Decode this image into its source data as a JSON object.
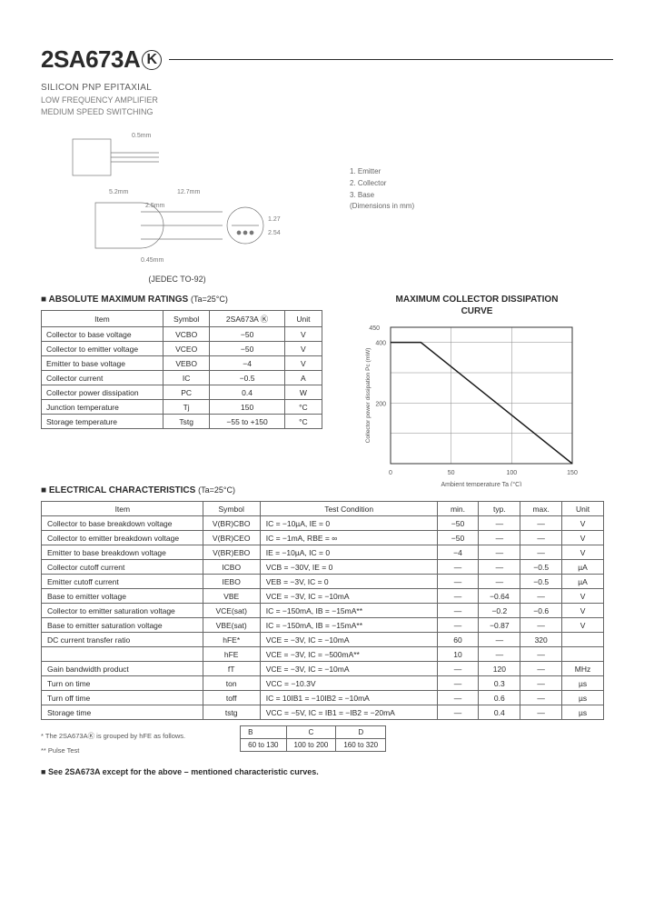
{
  "header": {
    "part_number": "2SA673A",
    "suffix_letter": "K",
    "subtitle1": "SILICON PNP EPITAXIAL",
    "subtitle2_line1": "LOW FREQUENCY AMPLIFIER",
    "subtitle2_line2": "MEDIUM SPEED SWITCHING"
  },
  "pin_legend": {
    "p1": "1. Emitter",
    "p2": "2. Collector",
    "p3": "3. Base",
    "note": "(Dimensions in mm)"
  },
  "package_label": "(JEDEC TO-92)",
  "diagram_dims": {
    "values": [
      "0.5mm",
      "5.2mm",
      "12.7mm",
      "2.5mm",
      "0.45mm",
      "1.27",
      "2.54"
    ]
  },
  "ratings_section": {
    "title": "ABSOLUTE MAXIMUM RATINGS",
    "condition": "(Ta=25°C)",
    "headers": [
      "Item",
      "Symbol",
      "2SA673A Ⓚ",
      "Unit"
    ],
    "rows": [
      [
        "Collector to base voltage",
        "VCBO",
        "−50",
        "V"
      ],
      [
        "Collector to emitter voltage",
        "VCEO",
        "−50",
        "V"
      ],
      [
        "Emitter to base voltage",
        "VEBO",
        "−4",
        "V"
      ],
      [
        "Collector current",
        "IC",
        "−0.5",
        "A"
      ],
      [
        "Collector power dissipation",
        "PC",
        "0.4",
        "W"
      ],
      [
        "Junction temperature",
        "Tj",
        "150",
        "°C"
      ],
      [
        "Storage temperature",
        "Tstg",
        "−55 to +150",
        "°C"
      ]
    ]
  },
  "chart": {
    "title_l1": "MAXIMUM COLLECTOR DISSIPATION",
    "title_l2": "CURVE",
    "ylabel": "Collector power dissipation Pc (mW)",
    "xlabel": "Ambient temperature Ta (°C)",
    "xlim": [
      0,
      150
    ],
    "ylim": [
      0,
      450
    ],
    "xticks": [
      0,
      50,
      100,
      150
    ],
    "yticks": [
      0,
      200,
      400
    ],
    "xtick_labels": [
      "0",
      "50",
      "100",
      "150"
    ],
    "ytick_labels": [
      "",
      "200",
      "400"
    ],
    "line_points": [
      [
        0,
        400
      ],
      [
        25,
        400
      ],
      [
        150,
        0
      ]
    ],
    "grid_color": "#888888",
    "line_color": "#1a1a1a",
    "background_color": "#ffffff"
  },
  "elec_section": {
    "title": "ELECTRICAL CHARACTERISTICS",
    "condition": "(Ta=25°C)",
    "headers": [
      "Item",
      "Symbol",
      "Test Condition",
      "min.",
      "typ.",
      "max.",
      "Unit"
    ],
    "rows": [
      [
        "Collector to base breakdown voltage",
        "V(BR)CBO",
        "IC = −10µA, IE = 0",
        "−50",
        "—",
        "—",
        "V"
      ],
      [
        "Collector to emitter breakdown voltage",
        "V(BR)CEO",
        "IC = −1mA, RBE = ∞",
        "−50",
        "—",
        "—",
        "V"
      ],
      [
        "Emitter to base breakdown voltage",
        "V(BR)EBO",
        "IE = −10µA, IC = 0",
        "−4",
        "—",
        "—",
        "V"
      ],
      [
        "Collector cutoff current",
        "ICBO",
        "VCB = −30V, IE = 0",
        "—",
        "—",
        "−0.5",
        "µA"
      ],
      [
        "Emitter cutoff current",
        "IEBO",
        "VEB = −3V, IC = 0",
        "—",
        "—",
        "−0.5",
        "µA"
      ],
      [
        "Base to emitter voltage",
        "VBE",
        "VCE = −3V, IC = −10mA",
        "—",
        "−0.64",
        "—",
        "V"
      ],
      [
        "Collector to emitter saturation voltage",
        "VCE(sat)",
        "IC = −150mA, IB = −15mA**",
        "—",
        "−0.2",
        "−0.6",
        "V"
      ],
      [
        "Base to emitter saturation voltage",
        "VBE(sat)",
        "IC = −150mA, IB = −15mA**",
        "—",
        "−0.87",
        "—",
        "V"
      ],
      [
        "DC current transfer ratio",
        "hFE*",
        "VCE = −3V, IC = −10mA",
        "60",
        "—",
        "320",
        ""
      ],
      [
        "",
        "hFE",
        "VCE = −3V, IC = −500mA**",
        "10",
        "—",
        "—",
        ""
      ],
      [
        "Gain bandwidth product",
        "fT",
        "VCE = −3V, IC = −10mA",
        "—",
        "120",
        "—",
        "MHz"
      ],
      [
        "Turn on time",
        "ton",
        "VCC = −10.3V",
        "—",
        "0.3",
        "—",
        "µs"
      ],
      [
        "Turn off time",
        "toff",
        "IC = 10IB1 = −10IB2 = −10mA",
        "—",
        "0.6",
        "—",
        "µs"
      ],
      [
        "Storage time",
        "tstg",
        "VCC = −5V, IC = IB1 = −IB2 = −20mA",
        "—",
        "0.4",
        "—",
        "µs"
      ]
    ]
  },
  "footnotes": {
    "f1": "* The 2SA673AⓀ is grouped by hFE as follows.",
    "f2": "** Pulse Test"
  },
  "group_table": {
    "headers": [
      "B",
      "C",
      "D"
    ],
    "rows": [
      [
        "60 to 130",
        "100 to 200",
        "160 to 320"
      ]
    ]
  },
  "see_note": "See 2SA673A except for the above – mentioned characteristic curves."
}
